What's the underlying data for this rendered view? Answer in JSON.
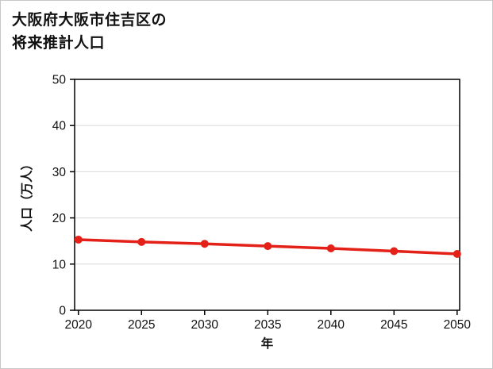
{
  "title": {
    "line1": "大阪府大阪市住吉区の",
    "line2": "将来推計人口"
  },
  "chart_data": {
    "type": "line",
    "title": "大阪府大阪市住吉区の将来推計人口",
    "xlabel": "年",
    "ylabel": "人口（万人）",
    "categories": [
      2020,
      2025,
      2030,
      2035,
      2040,
      2045,
      2050
    ],
    "series": [
      {
        "name": "将来推計人口",
        "values": [
          15.3,
          14.8,
          14.4,
          13.9,
          13.4,
          12.8,
          12.2
        ]
      }
    ],
    "xlim": [
      2019.7,
      2050.2
    ],
    "ylim": [
      0,
      50
    ],
    "yticks": [
      0,
      10,
      20,
      30,
      40,
      50
    ],
    "grid": true,
    "legend": "none",
    "line_color": "#e32119",
    "marker": "circle",
    "grid_color": "#d9d9d9",
    "axis_color": "#000000"
  }
}
